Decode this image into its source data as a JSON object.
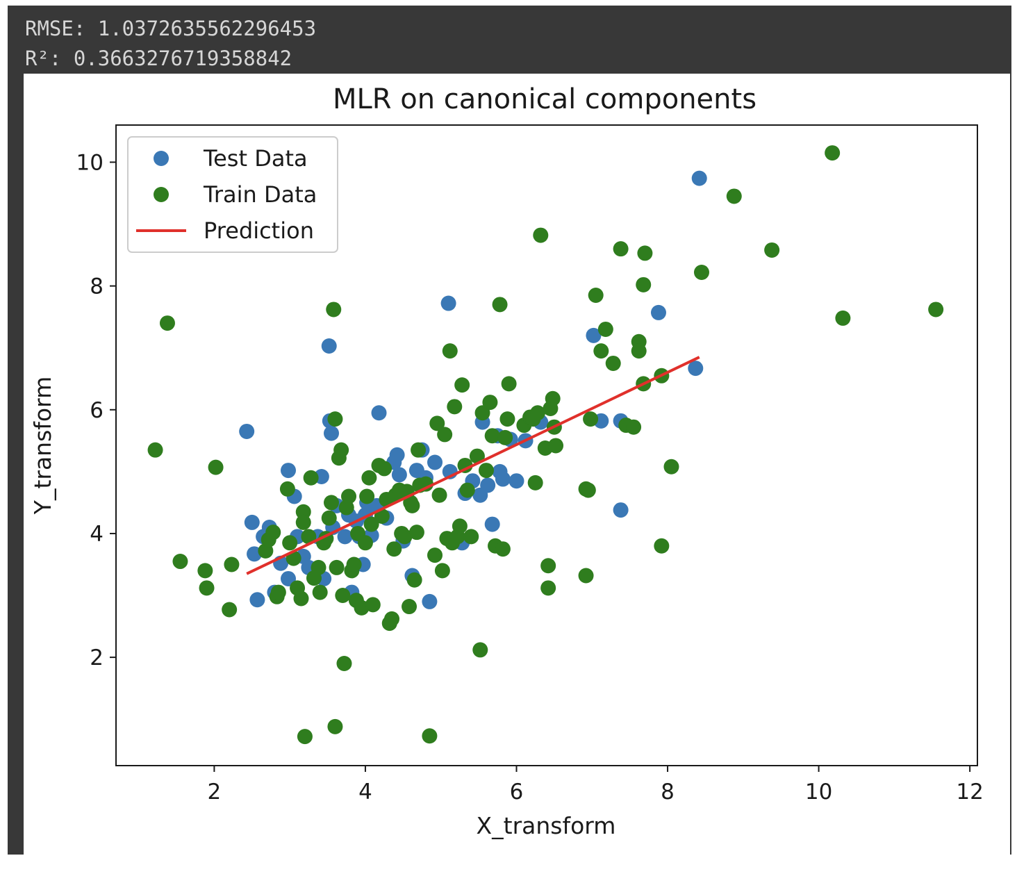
{
  "output": {
    "rmse_line": "RMSE: 1.0372635562296453",
    "r2_line": "R²: 0.3663276719358842"
  },
  "chart_data": {
    "type": "scatter",
    "title": "MLR on canonical components",
    "xlabel": "X_transform",
    "ylabel": "Y_transform",
    "xlim": [
      0.7,
      12.1
    ],
    "ylim": [
      0.25,
      10.6
    ],
    "xticks": [
      2,
      4,
      6,
      8,
      10,
      12
    ],
    "yticks": [
      2,
      4,
      6,
      8,
      10
    ],
    "grid": false,
    "legend_position": "upper-left",
    "legend": [
      {
        "label": "Test Data",
        "kind": "marker",
        "color": "#3a78b5"
      },
      {
        "label": "Train Data",
        "kind": "marker",
        "color": "#2f7d1e"
      },
      {
        "label": "Prediction",
        "kind": "line",
        "color": "#e0302b"
      }
    ],
    "series": [
      {
        "name": "Test Data",
        "kind": "scatter",
        "color": "#3a78b5",
        "points": [
          [
            2.43,
            5.65
          ],
          [
            2.5,
            4.18
          ],
          [
            2.53,
            3.67
          ],
          [
            2.57,
            2.93
          ],
          [
            2.65,
            3.95
          ],
          [
            2.73,
            4.1
          ],
          [
            2.8,
            3.05
          ],
          [
            2.88,
            3.52
          ],
          [
            2.98,
            5.02
          ],
          [
            2.98,
            3.27
          ],
          [
            3.06,
            4.6
          ],
          [
            3.1,
            3.95
          ],
          [
            3.18,
            3.63
          ],
          [
            3.25,
            3.45
          ],
          [
            3.37,
            3.95
          ],
          [
            3.42,
            4.92
          ],
          [
            3.45,
            3.27
          ],
          [
            3.52,
            7.03
          ],
          [
            3.53,
            5.82
          ],
          [
            3.55,
            5.62
          ],
          [
            3.57,
            4.1
          ],
          [
            3.62,
            4.45
          ],
          [
            3.73,
            3.95
          ],
          [
            3.78,
            4.3
          ],
          [
            3.82,
            3.05
          ],
          [
            3.88,
            4.2
          ],
          [
            3.92,
            3.95
          ],
          [
            3.97,
            3.5
          ],
          [
            4.0,
            4.3
          ],
          [
            4.02,
            4.5
          ],
          [
            4.08,
            3.97
          ],
          [
            4.15,
            4.45
          ],
          [
            4.18,
            5.95
          ],
          [
            4.28,
            4.25
          ],
          [
            4.38,
            5.15
          ],
          [
            4.42,
            5.27
          ],
          [
            4.45,
            4.95
          ],
          [
            4.5,
            3.88
          ],
          [
            4.55,
            4.65
          ],
          [
            4.62,
            3.32
          ],
          [
            4.68,
            5.02
          ],
          [
            4.75,
            5.35
          ],
          [
            4.8,
            4.9
          ],
          [
            4.85,
            2.9
          ],
          [
            4.92,
            5.15
          ],
          [
            5.1,
            7.72
          ],
          [
            5.12,
            5.0
          ],
          [
            5.18,
            3.9
          ],
          [
            5.28,
            3.85
          ],
          [
            5.32,
            4.65
          ],
          [
            5.42,
            4.85
          ],
          [
            5.52,
            4.62
          ],
          [
            5.55,
            5.8
          ],
          [
            5.62,
            4.78
          ],
          [
            5.68,
            4.15
          ],
          [
            5.75,
            5.58
          ],
          [
            5.78,
            5.0
          ],
          [
            5.82,
            4.88
          ],
          [
            5.92,
            5.52
          ],
          [
            6.0,
            4.85
          ],
          [
            6.12,
            5.5
          ],
          [
            6.32,
            5.8
          ],
          [
            7.02,
            7.2
          ],
          [
            7.12,
            5.82
          ],
          [
            7.38,
            5.82
          ],
          [
            7.38,
            4.38
          ],
          [
            7.88,
            7.57
          ],
          [
            8.37,
            6.67
          ],
          [
            8.42,
            9.74
          ]
        ]
      },
      {
        "name": "Train Data",
        "kind": "scatter",
        "color": "#2f7d1e",
        "points": [
          [
            1.22,
            5.35
          ],
          [
            1.38,
            7.4
          ],
          [
            1.55,
            3.55
          ],
          [
            1.88,
            3.4
          ],
          [
            1.9,
            3.12
          ],
          [
            2.02,
            5.07
          ],
          [
            2.2,
            2.77
          ],
          [
            2.23,
            3.5
          ],
          [
            2.68,
            3.72
          ],
          [
            2.72,
            3.9
          ],
          [
            2.78,
            4.02
          ],
          [
            2.83,
            2.98
          ],
          [
            2.85,
            3.05
          ],
          [
            2.97,
            4.72
          ],
          [
            3.0,
            3.85
          ],
          [
            3.05,
            3.6
          ],
          [
            3.1,
            3.12
          ],
          [
            3.15,
            2.95
          ],
          [
            3.18,
            4.35
          ],
          [
            3.18,
            4.18
          ],
          [
            3.2,
            0.72
          ],
          [
            3.25,
            3.95
          ],
          [
            3.28,
            4.9
          ],
          [
            3.32,
            3.28
          ],
          [
            3.38,
            3.45
          ],
          [
            3.4,
            3.05
          ],
          [
            3.45,
            3.85
          ],
          [
            3.48,
            3.92
          ],
          [
            3.52,
            4.25
          ],
          [
            3.55,
            4.5
          ],
          [
            3.58,
            7.62
          ],
          [
            3.6,
            0.88
          ],
          [
            3.6,
            5.85
          ],
          [
            3.62,
            3.45
          ],
          [
            3.65,
            5.22
          ],
          [
            3.68,
            5.35
          ],
          [
            3.7,
            3.0
          ],
          [
            3.72,
            1.9
          ],
          [
            3.75,
            4.42
          ],
          [
            3.78,
            4.6
          ],
          [
            3.82,
            3.4
          ],
          [
            3.85,
            3.5
          ],
          [
            3.88,
            2.92
          ],
          [
            3.9,
            4.0
          ],
          [
            3.95,
            2.8
          ],
          [
            4.0,
            3.85
          ],
          [
            4.02,
            4.6
          ],
          [
            4.05,
            4.9
          ],
          [
            4.08,
            4.15
          ],
          [
            4.1,
            2.85
          ],
          [
            4.18,
            5.1
          ],
          [
            4.22,
            4.28
          ],
          [
            4.25,
            5.05
          ],
          [
            4.28,
            4.55
          ],
          [
            4.32,
            2.55
          ],
          [
            4.35,
            2.62
          ],
          [
            4.38,
            3.75
          ],
          [
            4.4,
            4.62
          ],
          [
            4.45,
            4.7
          ],
          [
            4.48,
            4.0
          ],
          [
            4.52,
            3.95
          ],
          [
            4.55,
            4.68
          ],
          [
            4.58,
            2.82
          ],
          [
            4.6,
            4.5
          ],
          [
            4.62,
            4.45
          ],
          [
            4.65,
            3.25
          ],
          [
            4.68,
            4.02
          ],
          [
            4.7,
            5.35
          ],
          [
            4.72,
            4.78
          ],
          [
            4.8,
            4.8
          ],
          [
            4.85,
            0.73
          ],
          [
            4.92,
            3.65
          ],
          [
            4.95,
            5.78
          ],
          [
            4.98,
            4.62
          ],
          [
            5.02,
            3.4
          ],
          [
            5.05,
            5.6
          ],
          [
            5.08,
            3.92
          ],
          [
            5.12,
            6.95
          ],
          [
            5.15,
            3.85
          ],
          [
            5.18,
            6.05
          ],
          [
            5.22,
            3.95
          ],
          [
            5.25,
            4.12
          ],
          [
            5.28,
            6.4
          ],
          [
            5.32,
            5.1
          ],
          [
            5.35,
            4.7
          ],
          [
            5.4,
            3.95
          ],
          [
            5.48,
            5.25
          ],
          [
            5.52,
            2.12
          ],
          [
            5.55,
            5.95
          ],
          [
            5.6,
            5.02
          ],
          [
            5.65,
            6.12
          ],
          [
            5.68,
            5.58
          ],
          [
            5.72,
            3.8
          ],
          [
            5.78,
            7.7
          ],
          [
            5.82,
            3.75
          ],
          [
            5.85,
            5.55
          ],
          [
            5.88,
            5.85
          ],
          [
            5.9,
            6.42
          ],
          [
            6.1,
            5.75
          ],
          [
            6.18,
            5.88
          ],
          [
            6.22,
            5.85
          ],
          [
            6.25,
            4.82
          ],
          [
            6.28,
            5.95
          ],
          [
            6.32,
            8.82
          ],
          [
            6.38,
            5.38
          ],
          [
            6.42,
            3.12
          ],
          [
            6.42,
            3.48
          ],
          [
            6.45,
            6.02
          ],
          [
            6.48,
            6.18
          ],
          [
            6.5,
            5.72
          ],
          [
            6.52,
            5.42
          ],
          [
            6.92,
            3.32
          ],
          [
            6.92,
            4.72
          ],
          [
            6.95,
            4.7
          ],
          [
            6.98,
            5.85
          ],
          [
            7.05,
            7.85
          ],
          [
            7.12,
            6.95
          ],
          [
            7.18,
            7.3
          ],
          [
            7.28,
            6.75
          ],
          [
            7.38,
            8.6
          ],
          [
            7.45,
            5.75
          ],
          [
            7.55,
            5.72
          ],
          [
            7.62,
            7.1
          ],
          [
            7.62,
            6.95
          ],
          [
            7.68,
            6.42
          ],
          [
            7.68,
            8.02
          ],
          [
            7.7,
            8.53
          ],
          [
            7.92,
            6.55
          ],
          [
            7.92,
            3.8
          ],
          [
            8.05,
            5.08
          ],
          [
            8.45,
            8.22
          ],
          [
            8.88,
            9.45
          ],
          [
            9.38,
            8.58
          ],
          [
            10.18,
            10.15
          ],
          [
            10.32,
            7.48
          ],
          [
            11.55,
            7.62
          ]
        ]
      },
      {
        "name": "Prediction",
        "kind": "line",
        "color": "#e0302b",
        "points": [
          [
            2.43,
            3.35
          ],
          [
            8.42,
            6.85
          ]
        ]
      }
    ]
  }
}
